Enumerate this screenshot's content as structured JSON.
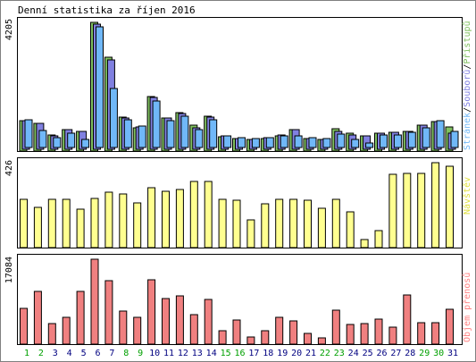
{
  "chart_data": {
    "type": "bar",
    "title": "Denní statistika za říjen 2016",
    "categories": [
      "1",
      "2",
      "3",
      "4",
      "5",
      "6",
      "7",
      "8",
      "9",
      "10",
      "11",
      "12",
      "13",
      "14",
      "15",
      "16",
      "17",
      "18",
      "19",
      "20",
      "21",
      "22",
      "23",
      "24",
      "25",
      "26",
      "27",
      "28",
      "29",
      "30",
      "31"
    ],
    "weekend_days": [
      "1",
      "2",
      "8",
      "9",
      "15",
      "16",
      "22",
      "23",
      "29",
      "30"
    ],
    "panels": [
      {
        "id": "top",
        "ymax_label": "4205",
        "ymax": 4205,
        "series": [
          {
            "name": "Přístupů",
            "color": "#80c060",
            "values": [
              980,
              900,
              540,
              700,
              640,
              4205,
              3060,
              1110,
              770,
              1790,
              1090,
              1260,
              840,
              1140,
              460,
              420,
              380,
              420,
              490,
              700,
              400,
              370,
              720,
              580,
              500,
              590,
              620,
              650,
              850,
              960,
              780
            ]
          },
          {
            "name": "Souborů",
            "color": "#8080e0",
            "values": [
              930,
              850,
              450,
              650,
              590,
              4080,
              2920,
              1030,
              720,
              1700,
              1030,
              1160,
              700,
              1050,
              430,
              360,
              330,
              370,
              460,
              640,
              360,
              330,
              590,
              470,
              430,
              520,
              560,
              590,
              780,
              910,
              540
            ]
          },
          {
            "name": "Stránek",
            "color": "#70b8f8",
            "values": [
              910,
              560,
              330,
              470,
              260,
              3940,
              1920,
              900,
              690,
              1530,
              870,
              1030,
              590,
              900,
              380,
              320,
              280,
              310,
              370,
              380,
              320,
              280,
              440,
              250,
              160,
              400,
              410,
              510,
              630,
              880,
              530
            ]
          }
        ],
        "legend": [
          "Stránek",
          "Souborů",
          "Přístupů"
        ]
      },
      {
        "id": "middle",
        "ymax_label": "426",
        "ymax": 426,
        "series": [
          {
            "name": "Návštěv",
            "color": "#ffff90",
            "values": [
              240,
              200,
              240,
              240,
              195,
              247,
              280,
              271,
              223,
              300,
              282,
              292,
              331,
              331,
              240,
              236,
              140,
              218,
              240,
              240,
              236,
              197,
              241,
              180,
              42,
              83,
              366,
              374,
              372,
              426,
              410
            ]
          }
        ],
        "legend": [
          "Návštěv"
        ]
      },
      {
        "id": "bottom",
        "ymax_label": "17084",
        "ymax": 17084,
        "series": [
          {
            "name": "Objem přenosů",
            "color": "#f08080",
            "values": [
              7270,
              10660,
              4110,
              5360,
              10530,
              17084,
              12850,
              6720,
              5350,
              12920,
              9130,
              9720,
              5870,
              8980,
              2690,
              4800,
              1510,
              2760,
              5360,
              4710,
              2200,
              1210,
              6800,
              4010,
              4080,
              5110,
              3410,
              9860,
              4360,
              4310,
              7100
            ]
          }
        ],
        "legend": [
          "Objem přenosů"
        ]
      }
    ],
    "colors": {
      "weekday_label": "#000080",
      "weekend_label": "#00a000",
      "legend_pristupu": "#80c060",
      "legend_souboru": "#8080e0",
      "legend_stranek": "#70b8f8",
      "legend_navstev": "#e0e040",
      "legend_objem": "#ff8080"
    }
  }
}
